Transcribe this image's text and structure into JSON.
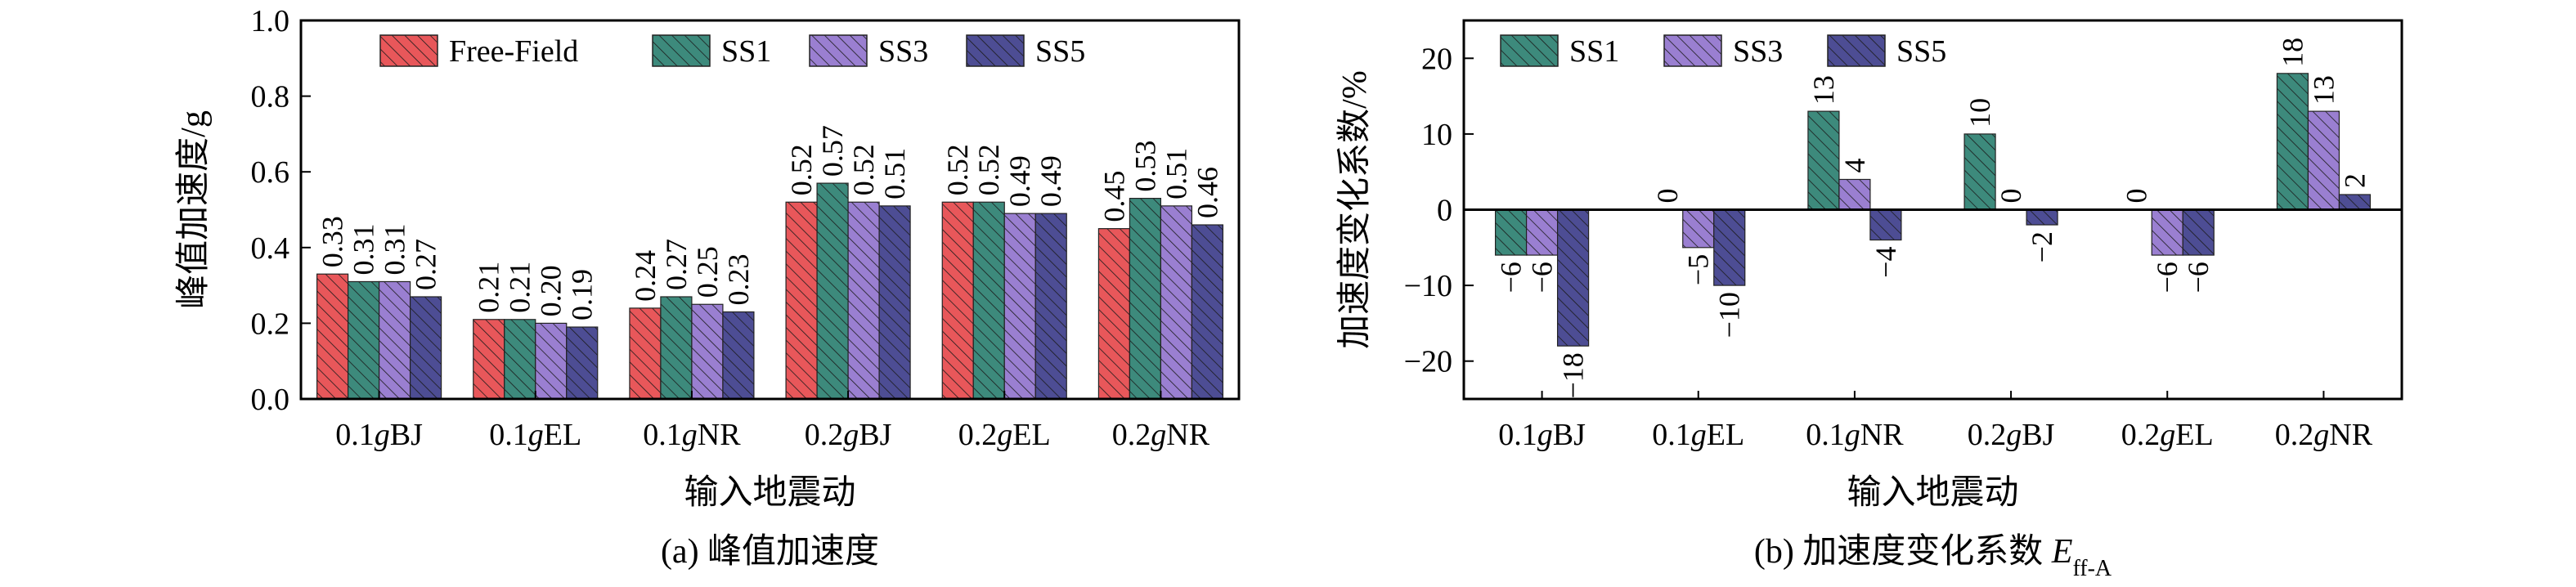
{
  "chart_data": [
    {
      "type": "bar",
      "caption": "(a) 峰值加速度",
      "xlabel": "输入地震动",
      "ylabel": "峰值加速度/g",
      "ylim": [
        0,
        1.0
      ],
      "yticks": [
        "0.0",
        "0.2",
        "0.4",
        "0.6",
        "0.8",
        "1.0"
      ],
      "categories": [
        "0.1gBJ",
        "0.1gEL",
        "0.1gNR",
        "0.2gBJ",
        "0.2gEL",
        "0.2gNR"
      ],
      "series": [
        {
          "name": "Free-Field",
          "color": "#e8575a",
          "values": [
            0.33,
            0.21,
            0.24,
            0.52,
            0.52,
            0.45
          ],
          "labels": [
            "0.33",
            "0.21",
            "0.24",
            "0.52",
            "0.52",
            "0.45"
          ]
        },
        {
          "name": "SS1",
          "color": "#3d8a7c",
          "values": [
            0.31,
            0.21,
            0.27,
            0.57,
            0.52,
            0.53
          ],
          "labels": [
            "0.31",
            "0.21",
            "0.27",
            "0.57",
            "0.52",
            "0.53"
          ]
        },
        {
          "name": "SS3",
          "color": "#9a7fd1",
          "values": [
            0.31,
            0.2,
            0.25,
            0.52,
            0.49,
            0.51
          ],
          "labels": [
            "0.31",
            "0.20",
            "0.25",
            "0.52",
            "0.49",
            "0.51"
          ]
        },
        {
          "name": "SS5",
          "color": "#4d4d94",
          "values": [
            0.27,
            0.19,
            0.23,
            0.51,
            0.49,
            0.46
          ],
          "labels": [
            "0.27",
            "0.19",
            "0.23",
            "0.51",
            "0.49",
            "0.46"
          ]
        }
      ],
      "legend": "top"
    },
    {
      "type": "bar",
      "caption_main": "(b) 加速度变化系数 ",
      "caption_var": "E",
      "caption_sub": "ff-A",
      "xlabel": "输入地震动",
      "ylabel": "加速度变化系数/%",
      "ylim": [
        -25,
        25
      ],
      "yticks": [
        "−20",
        "−10",
        "0",
        "10",
        "20"
      ],
      "ytick_values": [
        -20,
        -10,
        0,
        10,
        20
      ],
      "categories": [
        "0.1gBJ",
        "0.1gEL",
        "0.1gNR",
        "0.2gBJ",
        "0.2gEL",
        "0.2gNR"
      ],
      "series": [
        {
          "name": "SS1",
          "color": "#3d8a7c",
          "values": [
            -6,
            0,
            13,
            10,
            0,
            18
          ],
          "labels": [
            "−6",
            "0",
            "13",
            "10",
            "0",
            "18"
          ]
        },
        {
          "name": "SS3",
          "color": "#9a7fd1",
          "values": [
            -6,
            -5,
            4,
            0,
            -6,
            13
          ],
          "labels": [
            "−6",
            "−5",
            "4",
            "0",
            "−6",
            "13"
          ]
        },
        {
          "name": "SS5",
          "color": "#4d4d94",
          "values": [
            -18,
            -10,
            -4,
            -2,
            -6,
            2
          ],
          "labels": [
            "−18",
            "−10",
            "−4",
            "−2",
            "−6",
            "2"
          ]
        }
      ],
      "legend": "top"
    }
  ]
}
